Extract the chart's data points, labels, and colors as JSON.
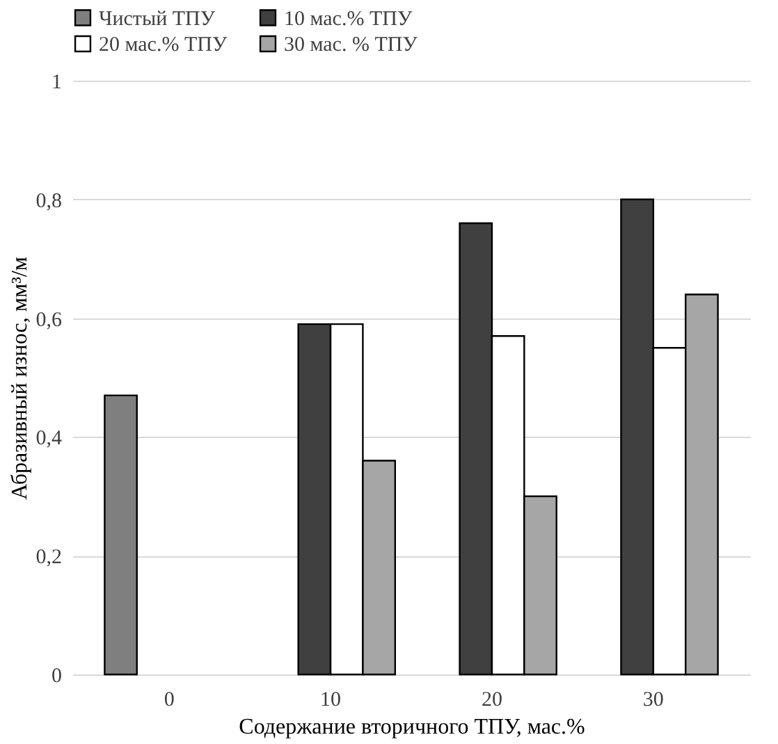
{
  "chart_data": {
    "type": "bar",
    "xlabel": "Содержание вторичного ТПУ, мас.%",
    "ylabel": "Абразивный износ, мм³/м",
    "categories": [
      "0",
      "10",
      "20",
      "30"
    ],
    "series": [
      {
        "name": "Чистый ТПУ",
        "color": "#7f7f7f",
        "values": [
          0.47,
          null,
          null,
          null
        ]
      },
      {
        "name": "10 мас.% ТПУ",
        "color": "#404040",
        "values": [
          null,
          0.59,
          0.76,
          0.8
        ]
      },
      {
        "name": "20 мас.% ТПУ",
        "color": "#ffffff",
        "values": [
          null,
          0.59,
          0.57,
          0.55
        ]
      },
      {
        "name": "30 мас. % ТПУ",
        "color": "#a6a6a6",
        "values": [
          null,
          0.36,
          0.3,
          0.64
        ]
      }
    ],
    "ylim": [
      0,
      1
    ],
    "yticks": [
      0,
      {
        "value": 0.2,
        "label": "0,2"
      },
      {
        "value": 0.4,
        "label": "0,4"
      },
      {
        "value": 0.6,
        "label": "0,6"
      },
      {
        "value": 0.8,
        "label": "0,8"
      },
      1
    ],
    "grid": "y",
    "legend": "top"
  }
}
